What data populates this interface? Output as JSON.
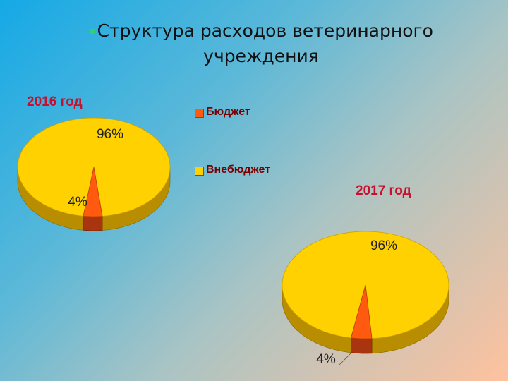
{
  "title": "Структура расходов ветеринарного учреждения",
  "colors": {
    "budget": "#ff5a10",
    "budget_side": "#a83410",
    "offbudget": "#ffd100",
    "offbudget_side": "#b98d00"
  },
  "chart_data": [
    {
      "type": "pie",
      "title": "2016 год",
      "categories": [
        "Бюджет",
        "Внебюджет"
      ],
      "values": [
        4,
        96
      ],
      "labels": [
        "4%",
        "96%"
      ]
    },
    {
      "type": "pie",
      "title": "2017 год",
      "categories": [
        "Бюджет",
        "Внебюджет"
      ],
      "values": [
        4,
        96
      ],
      "labels": [
        "4%",
        "96%"
      ]
    }
  ],
  "legend": [
    {
      "label": "Бюджет",
      "color": "#ff5a10"
    },
    {
      "label": "Внебюджет",
      "color": "#ffd100"
    }
  ]
}
